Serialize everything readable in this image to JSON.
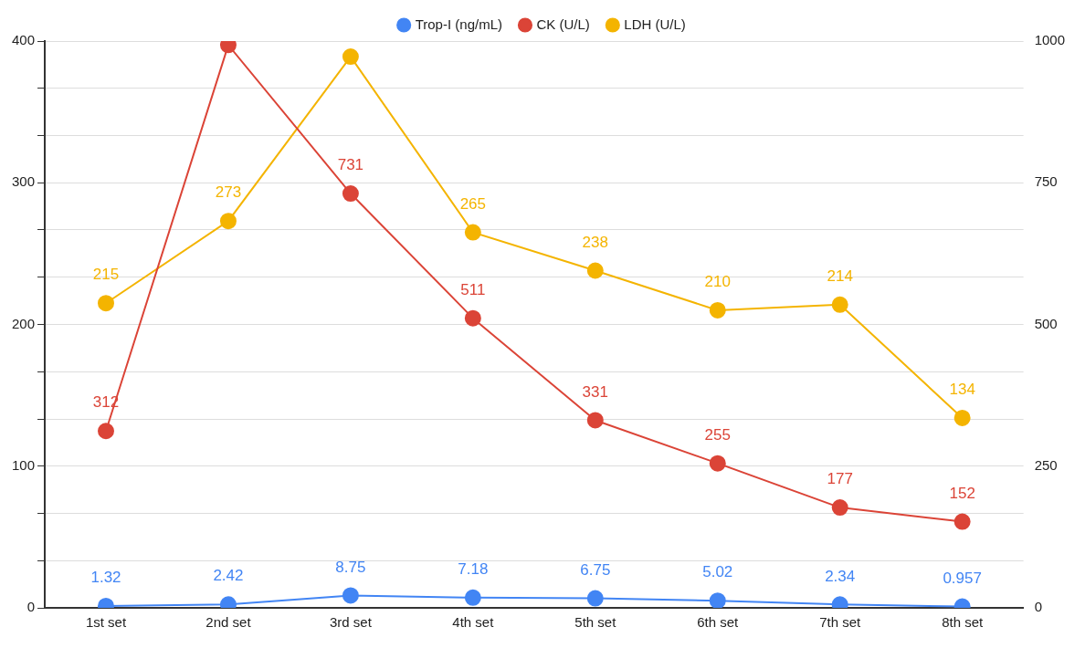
{
  "chart_data": {
    "type": "line",
    "categories": [
      "1st set",
      "2nd set",
      "3rd set",
      "4th set",
      "5th set",
      "6th set",
      "7th set",
      "8th set"
    ],
    "series": [
      {
        "name": "Trop-I (ng/mL)",
        "color": "#4285f4",
        "values": [
          1.32,
          2.42,
          8.75,
          7.18,
          6.75,
          5.02,
          2.34,
          0.957
        ],
        "value_labels": [
          "1.32",
          "2.42",
          "8.75",
          "7.18",
          "6.75",
          "5.02",
          "2.34",
          "0.957"
        ]
      },
      {
        "name": "CK (U/L)",
        "color": "#db4437",
        "axis": "y2",
        "values": [
          312,
          993,
          731,
          511,
          331,
          255,
          177,
          152
        ],
        "value_labels": [
          "312",
          null,
          "731",
          "511",
          "331",
          "255",
          "177",
          "152"
        ]
      },
      {
        "name": "LDH (U/L)",
        "color": "#f4b400",
        "values": [
          215,
          273,
          389,
          265,
          238,
          210,
          214,
          134
        ],
        "value_labels": [
          "215",
          "273",
          null,
          "265",
          "238",
          "210",
          "214",
          "134"
        ]
      }
    ],
    "ylim": [
      0,
      400
    ],
    "yticks": [
      0,
      {
        "value": 33.3,
        "label": null
      },
      {
        "value": 66.7,
        "label": null
      },
      100,
      {
        "value": 133.3,
        "label": null
      },
      {
        "value": 166.7,
        "label": null
      },
      200,
      {
        "value": 233.3,
        "label": null
      },
      {
        "value": 266.7,
        "label": null
      },
      300,
      {
        "value": 333.3,
        "label": null
      },
      {
        "value": 366.7,
        "label": null
      },
      400
    ],
    "y2lim": [
      0,
      1000
    ],
    "y2ticks": [
      0,
      250,
      500,
      750,
      1000
    ],
    "grid": "y",
    "legend": "top",
    "marker": "circle",
    "line_style": "solid"
  }
}
